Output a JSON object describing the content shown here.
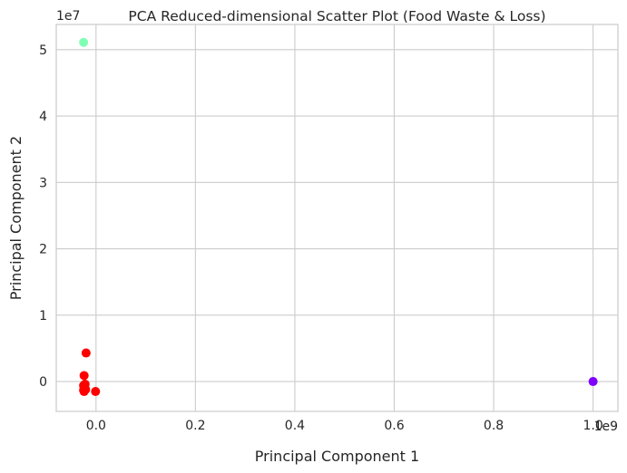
{
  "chart_data": {
    "type": "scatter",
    "title": "PCA Reduced-dimensional Scatter Plot (Food Waste & Loss)",
    "xlabel": "Principal Component 1",
    "ylabel": "Principal Component 2",
    "x_scale_label": "1e9",
    "y_scale_label": "1e7",
    "xlim": [
      -0.08,
      1.05
    ],
    "ylim": [
      -0.45,
      5.38
    ],
    "x_ticks": [
      "0.0",
      "0.2",
      "0.4",
      "0.6",
      "0.8",
      "1.0"
    ],
    "x_tick_values": [
      0.0,
      0.2,
      0.4,
      0.6,
      0.8,
      1.0
    ],
    "y_ticks": [
      "0",
      "1",
      "2",
      "3",
      "4",
      "5"
    ],
    "y_tick_values": [
      0,
      1,
      2,
      3,
      4,
      5
    ],
    "grid": true,
    "colors": {
      "cluster_a": "#ff0000",
      "cluster_b": "#80ffb4",
      "cluster_c": "#8000ff"
    },
    "points": [
      {
        "x": -0.025,
        "y": 5.11,
        "color": "cluster_b"
      },
      {
        "x": 1.0,
        "y": 0.0,
        "color": "cluster_c"
      },
      {
        "x": -0.02,
        "y": 0.43,
        "color": "cluster_a"
      },
      {
        "x": -0.024,
        "y": 0.09,
        "color": "cluster_a"
      },
      {
        "x": -0.022,
        "y": -0.04,
        "color": "cluster_a"
      },
      {
        "x": -0.024,
        "y": -0.08,
        "color": "cluster_a"
      },
      {
        "x": -0.023,
        "y": -0.11,
        "color": "cluster_a"
      },
      {
        "x": -0.025,
        "y": -0.13,
        "color": "cluster_a"
      },
      {
        "x": -0.024,
        "y": -0.15,
        "color": "cluster_a"
      },
      {
        "x": -0.021,
        "y": -0.12,
        "color": "cluster_a"
      },
      {
        "x": -0.025,
        "y": -0.06,
        "color": "cluster_a"
      },
      {
        "x": -0.001,
        "y": -0.15,
        "color": "cluster_a"
      }
    ]
  }
}
